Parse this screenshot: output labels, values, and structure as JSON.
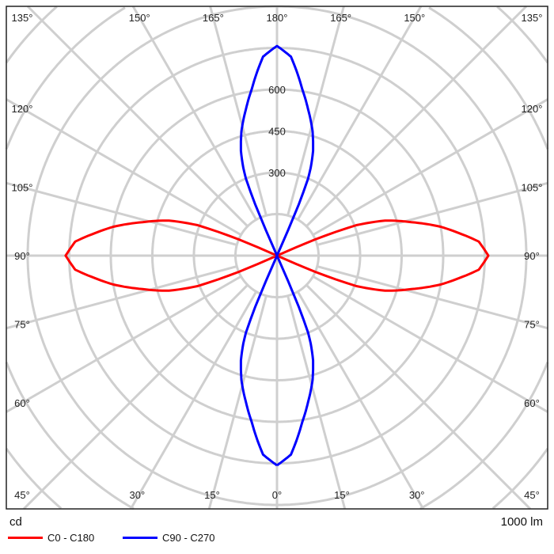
{
  "chart_data": {
    "type": "polar",
    "unit_label": "cd",
    "flux_label": "1000 lm",
    "radial_step": 150,
    "radial_tick_labels": [
      "300",
      "450",
      "600"
    ],
    "radial_tick_values": [
      300,
      450,
      600
    ],
    "angle_step_deg": 15,
    "angle_labels": {
      "top": [
        "135°",
        "150°",
        "165°",
        "180°",
        "165°",
        "150°",
        "135°"
      ],
      "left": [
        "120°",
        "105°",
        "90°",
        "75°",
        "60°"
      ],
      "right": [
        "120°",
        "105°",
        "90°",
        "75°",
        "60°"
      ],
      "bottom": [
        "45°",
        "30°",
        "15°",
        "0°",
        "15°",
        "30°",
        "45°"
      ]
    },
    "grid": true,
    "legend_placement": "bottom-left",
    "series": [
      {
        "name": "C0 - C180",
        "color": "#ff0000",
        "axis": "horizontal (90°)",
        "angles_from_peak_deg": [
          0,
          4,
          7,
          10,
          14,
          18,
          21,
          23,
          24
        ],
        "values_cd": [
          763,
          730,
          663,
          600,
          500,
          410,
          307,
          150,
          0
        ]
      },
      {
        "name": "C90 - C270",
        "color": "#0000ff",
        "axis": "vertical (0°/180°)",
        "angles_from_peak_deg": [
          0,
          4,
          8.7,
          12,
          16,
          19,
          21,
          22,
          23,
          23.5,
          24
        ],
        "values_cd": [
          757,
          720,
          606,
          540,
          466,
          400,
          340,
          300,
          200,
          100,
          0
        ]
      }
    ]
  }
}
